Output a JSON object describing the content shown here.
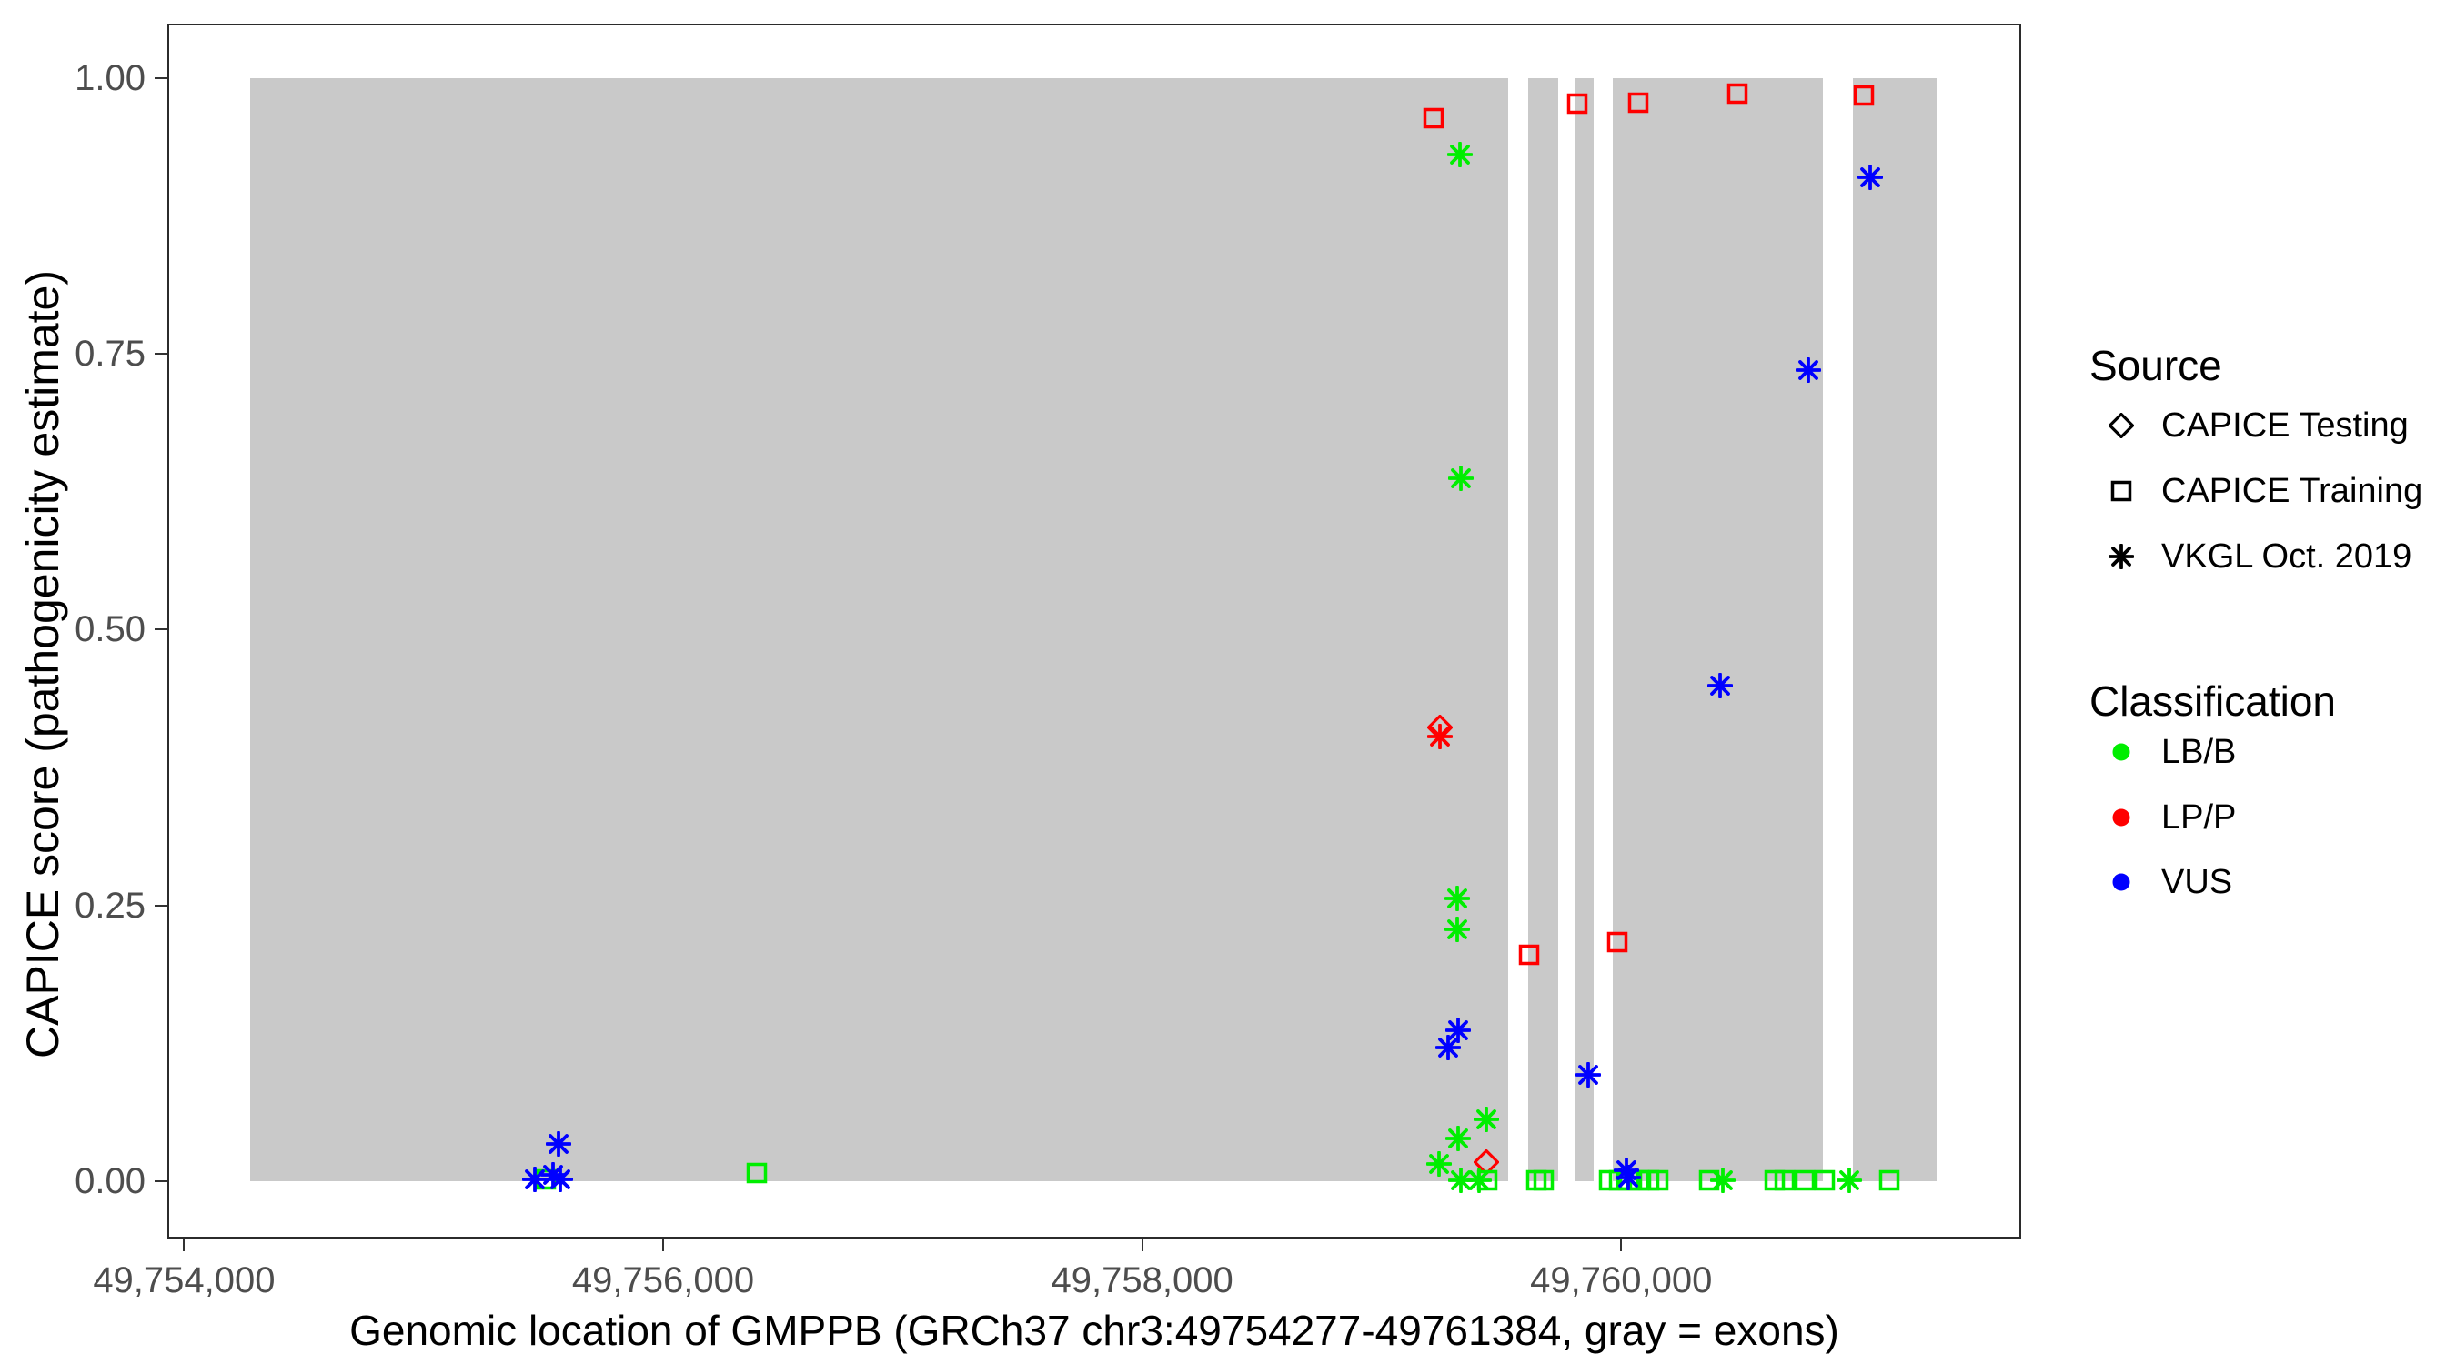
{
  "chart_data": {
    "type": "scatter",
    "xlabel": "Genomic location of GMPPB (GRCh37 chr3:49754277-49761384, gray = exons)",
    "ylabel": "CAPICE score (pathogenicity estimate)",
    "xlim": [
      49753930,
      49761670
    ],
    "ylim": [
      -0.052,
      1.0495
    ],
    "x_ticks": [
      {
        "value": 49754000,
        "label": "49,754,000"
      },
      {
        "value": 49756000,
        "label": "49,756,000"
      },
      {
        "value": 49758000,
        "label": "49,758,000"
      },
      {
        "value": 49760000,
        "label": "49,760,000"
      }
    ],
    "y_ticks": [
      {
        "value": 0.0,
        "label": "0.00"
      },
      {
        "value": 0.25,
        "label": "0.25"
      },
      {
        "value": 0.5,
        "label": "0.50"
      },
      {
        "value": 0.75,
        "label": "0.75"
      },
      {
        "value": 1.0,
        "label": "1.00"
      }
    ],
    "gray_note": "gray = exons",
    "exon_regions": [
      [
        49754277,
        49759528
      ],
      [
        49759612,
        49759737
      ],
      [
        49759809,
        49759885
      ],
      [
        49759965,
        49760841
      ],
      [
        49760966,
        49761315
      ]
    ],
    "shape_by_source": {
      "CAPICE Testing": "diamond",
      "CAPICE Training": "square",
      "VKGL Oct. 2019": "asterisk"
    },
    "color_by_classification": {
      "LB/B": "#00EE00",
      "LP/P": "#FF0000",
      "VUS": "#0000FF"
    },
    "points": [
      {
        "x": 49759217,
        "y": 0.964,
        "source": "CAPICE Training",
        "classification": "LP/P"
      },
      {
        "x": 49759817,
        "y": 0.977,
        "source": "CAPICE Training",
        "classification": "LP/P"
      },
      {
        "x": 49760071,
        "y": 0.978,
        "source": "CAPICE Training",
        "classification": "LP/P"
      },
      {
        "x": 49760484,
        "y": 0.986,
        "source": "CAPICE Training",
        "classification": "LP/P"
      },
      {
        "x": 49761012,
        "y": 0.984,
        "source": "CAPICE Training",
        "classification": "LP/P"
      },
      {
        "x": 49759617,
        "y": 0.205,
        "source": "CAPICE Training",
        "classification": "LP/P"
      },
      {
        "x": 49759982,
        "y": 0.217,
        "source": "CAPICE Training",
        "classification": "LP/P"
      },
      {
        "x": 49759244,
        "y": 0.411,
        "source": "CAPICE Testing",
        "classification": "LP/P"
      },
      {
        "x": 49759437,
        "y": 0.017,
        "source": "CAPICE Testing",
        "classification": "LP/P"
      },
      {
        "x": 49759244,
        "y": 0.403,
        "source": "VKGL Oct. 2019",
        "classification": "LP/P"
      },
      {
        "x": 49759328,
        "y": 0.931,
        "source": "VKGL Oct. 2019",
        "classification": "LB/B"
      },
      {
        "x": 49759331,
        "y": 0.637,
        "source": "VKGL Oct. 2019",
        "classification": "LB/B"
      },
      {
        "x": 49759316,
        "y": 0.256,
        "source": "VKGL Oct. 2019",
        "classification": "LB/B"
      },
      {
        "x": 49759316,
        "y": 0.228,
        "source": "VKGL Oct. 2019",
        "classification": "LB/B"
      },
      {
        "x": 49759437,
        "y": 0.056,
        "source": "VKGL Oct. 2019",
        "classification": "LB/B"
      },
      {
        "x": 49759320,
        "y": 0.039,
        "source": "VKGL Oct. 2019",
        "classification": "LB/B"
      },
      {
        "x": 49759240,
        "y": 0.016,
        "source": "VKGL Oct. 2019",
        "classification": "LB/B"
      },
      {
        "x": 49759331,
        "y": 0.001,
        "source": "VKGL Oct. 2019",
        "classification": "LB/B"
      },
      {
        "x": 49759407,
        "y": 0.001,
        "source": "VKGL Oct. 2019",
        "classification": "LB/B"
      },
      {
        "x": 49760425,
        "y": 0.001,
        "source": "VKGL Oct. 2019",
        "classification": "LB/B"
      },
      {
        "x": 49760951,
        "y": 0.001,
        "source": "VKGL Oct. 2019",
        "classification": "LB/B"
      },
      {
        "x": 49755510,
        "y": 0.002,
        "source": "CAPICE Training",
        "classification": "LB/B"
      },
      {
        "x": 49756390,
        "y": 0.007,
        "source": "CAPICE Training",
        "classification": "LB/B"
      },
      {
        "x": 49759441,
        "y": 0.001,
        "source": "CAPICE Training",
        "classification": "LB/B"
      },
      {
        "x": 49759646,
        "y": 0.001,
        "source": "CAPICE Training",
        "classification": "LB/B"
      },
      {
        "x": 49759676,
        "y": 0.001,
        "source": "CAPICE Training",
        "classification": "LB/B"
      },
      {
        "x": 49759950,
        "y": 0.001,
        "source": "CAPICE Training",
        "classification": "LB/B"
      },
      {
        "x": 49759991,
        "y": 0.001,
        "source": "CAPICE Training",
        "classification": "LB/B"
      },
      {
        "x": 49760033,
        "y": 0.001,
        "source": "CAPICE Training",
        "classification": "LB/B"
      },
      {
        "x": 49760075,
        "y": 0.001,
        "source": "CAPICE Training",
        "classification": "LB/B"
      },
      {
        "x": 49760117,
        "y": 0.001,
        "source": "CAPICE Training",
        "classification": "LB/B"
      },
      {
        "x": 49760155,
        "y": 0.001,
        "source": "CAPICE Training",
        "classification": "LB/B"
      },
      {
        "x": 49760367,
        "y": 0.001,
        "source": "CAPICE Training",
        "classification": "LB/B"
      },
      {
        "x": 49760640,
        "y": 0.001,
        "source": "CAPICE Training",
        "classification": "LB/B"
      },
      {
        "x": 49760682,
        "y": 0.001,
        "source": "CAPICE Training",
        "classification": "LB/B"
      },
      {
        "x": 49760765,
        "y": 0.001,
        "source": "CAPICE Training",
        "classification": "LB/B"
      },
      {
        "x": 49760849,
        "y": 0.001,
        "source": "CAPICE Training",
        "classification": "LB/B"
      },
      {
        "x": 49761118,
        "y": 0.001,
        "source": "CAPICE Training",
        "classification": "LB/B"
      },
      {
        "x": 49755465,
        "y": 0.002,
        "source": "VKGL Oct. 2019",
        "classification": "VUS"
      },
      {
        "x": 49755541,
        "y": 0.006,
        "source": "VKGL Oct. 2019",
        "classification": "VUS"
      },
      {
        "x": 49755571,
        "y": 0.002,
        "source": "VKGL Oct. 2019",
        "classification": "VUS"
      },
      {
        "x": 49755563,
        "y": 0.034,
        "source": "VKGL Oct. 2019",
        "classification": "VUS"
      },
      {
        "x": 49759278,
        "y": 0.121,
        "source": "VKGL Oct. 2019",
        "classification": "VUS"
      },
      {
        "x": 49759320,
        "y": 0.137,
        "source": "VKGL Oct. 2019",
        "classification": "VUS"
      },
      {
        "x": 49759862,
        "y": 0.096,
        "source": "VKGL Oct. 2019",
        "classification": "VUS"
      },
      {
        "x": 49760022,
        "y": 0.01,
        "source": "VKGL Oct. 2019",
        "classification": "VUS"
      },
      {
        "x": 49760029,
        "y": 0.003,
        "source": "VKGL Oct. 2019",
        "classification": "VUS"
      },
      {
        "x": 49760412,
        "y": 0.449,
        "source": "VKGL Oct. 2019",
        "classification": "VUS"
      },
      {
        "x": 49760780,
        "y": 0.735,
        "source": "VKGL Oct. 2019",
        "classification": "VUS"
      },
      {
        "x": 49761038,
        "y": 0.91,
        "source": "VKGL Oct. 2019",
        "classification": "VUS"
      }
    ]
  },
  "legend": {
    "source": {
      "title": "Source",
      "items": [
        {
          "label": "CAPICE Testing",
          "shape": "diamond"
        },
        {
          "label": "CAPICE Training",
          "shape": "square"
        },
        {
          "label": "VKGL Oct. 2019",
          "shape": "asterisk"
        }
      ]
    },
    "classification": {
      "title": "Classification",
      "items": [
        {
          "label": "LB/B",
          "color": "#00EE00"
        },
        {
          "label": "LP/P",
          "color": "#FF0000"
        },
        {
          "label": "VUS",
          "color": "#0000FF"
        }
      ]
    }
  },
  "ui_colors": {
    "exon_fill": "#C9C9C9",
    "panel_border": "#2B2B2B",
    "tick_mark": "#333333",
    "tick_label": "#4D4D4D",
    "marker_black": "#000000"
  }
}
